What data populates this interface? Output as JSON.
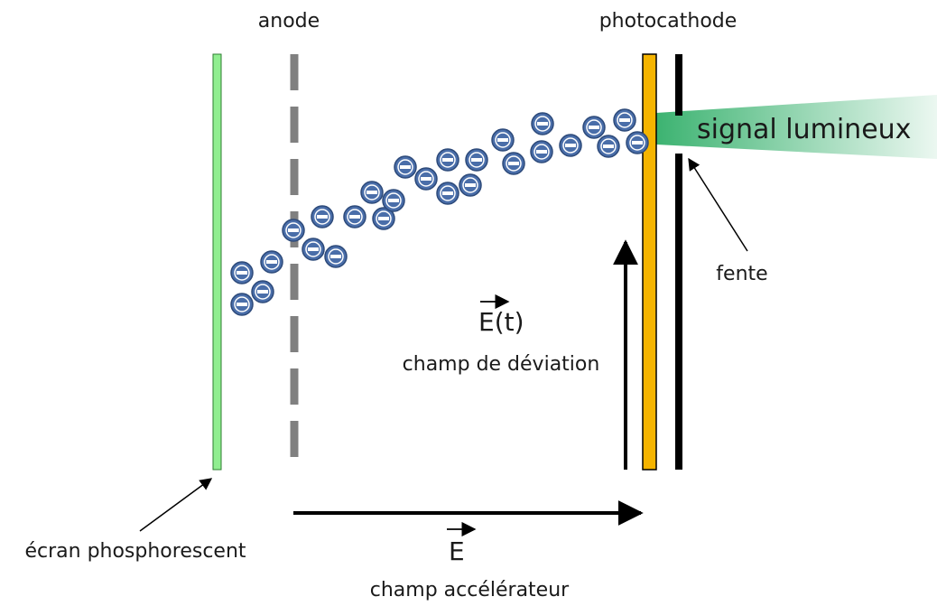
{
  "labels": {
    "anode": "anode",
    "photocathode": "photocathode",
    "signal": "signal lumineux",
    "slit": "fente",
    "deviation_field_symbol": "E(t)",
    "deviation_field": "champ de déviation",
    "accel_field_symbol": "E",
    "accel_field": "champ accélérateur",
    "screen": "écran phosphorescent"
  }
}
